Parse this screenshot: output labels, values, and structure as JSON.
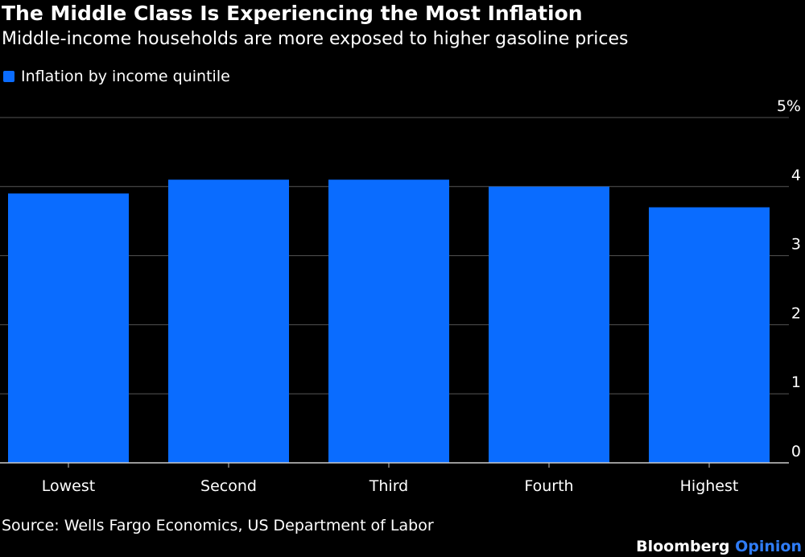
{
  "header": {
    "title": "The Middle Class Is Experiencing the Most Inflation",
    "subtitle": "Middle-income households are more exposed to higher gasoline prices"
  },
  "legend": {
    "label": "Inflation by income quintile"
  },
  "colors": {
    "bar": "#0a6cff",
    "background": "#000000",
    "gridline": "#555555",
    "baseline": "#cccccc",
    "text": "#ffffff",
    "brand_accent": "#2f7cf6"
  },
  "chart_data": {
    "type": "bar",
    "categories": [
      "Lowest",
      "Second",
      "Third",
      "Fourth",
      "Highest"
    ],
    "series": [
      {
        "name": "Inflation by income quintile",
        "values": [
          3.9,
          4.1,
          4.1,
          4.0,
          3.7
        ]
      }
    ],
    "title": "The Middle Class Is Experiencing the Most Inflation",
    "subtitle": "Middle-income households are more exposed to higher gasoline prices",
    "xlabel": "",
    "ylabel": "",
    "ylim": [
      0,
      5
    ],
    "yticks": [
      {
        "value": 0,
        "label": "0"
      },
      {
        "value": 1,
        "label": "1"
      },
      {
        "value": 2,
        "label": "2"
      },
      {
        "value": 3,
        "label": "3"
      },
      {
        "value": 4,
        "label": "4"
      },
      {
        "value": 5,
        "label": "5%"
      }
    ],
    "grid": true,
    "yaxis_side": "right",
    "legend_position": "top-left"
  },
  "footer": {
    "source": "Source: Wells Fargo Economics, US Department of Labor",
    "brand_main": "Bloomberg",
    "brand_accent": "Opinion"
  }
}
